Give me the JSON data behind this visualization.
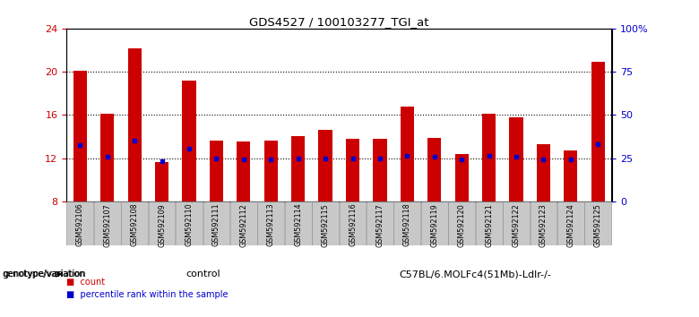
{
  "title": "GDS4527 / 100103277_TGI_at",
  "samples": [
    "GSM592106",
    "GSM592107",
    "GSM592108",
    "GSM592109",
    "GSM592110",
    "GSM592111",
    "GSM592112",
    "GSM592113",
    "GSM592114",
    "GSM592115",
    "GSM592116",
    "GSM592117",
    "GSM592118",
    "GSM592119",
    "GSM592120",
    "GSM592121",
    "GSM592122",
    "GSM592123",
    "GSM592124",
    "GSM592125"
  ],
  "counts": [
    20.1,
    16.1,
    22.2,
    11.6,
    19.2,
    13.6,
    13.5,
    13.6,
    14.0,
    14.6,
    13.8,
    13.8,
    16.8,
    13.9,
    12.4,
    16.1,
    15.8,
    13.3,
    12.7,
    20.9
  ],
  "percentile_ranks": [
    13.2,
    12.1,
    13.6,
    11.7,
    12.9,
    12.0,
    11.9,
    11.9,
    12.0,
    12.0,
    12.0,
    12.0,
    12.2,
    12.1,
    11.9,
    12.2,
    12.1,
    11.9,
    11.9,
    13.3
  ],
  "control_label": "control",
  "treatment_label": "C57BL/6.MOLFc4(51Mb)-Ldlr-/-",
  "ylim_left": [
    8,
    24
  ],
  "ylim_right": [
    0,
    100
  ],
  "yticks_left": [
    8,
    12,
    16,
    20,
    24
  ],
  "yticks_right": [
    0,
    25,
    50,
    75,
    100
  ],
  "ytick_labels_right": [
    "0",
    "25",
    "50",
    "75",
    "100%"
  ],
  "bar_color": "#cc0000",
  "marker_color": "#0000cc",
  "tick_color_left": "#cc0000",
  "tick_color_right": "#0000cc",
  "legend_count_label": "count",
  "legend_pct_label": "percentile rank within the sample",
  "genotype_label": "genotype/variation",
  "bar_width": 0.5,
  "sample_bg": "#c8c8c8",
  "control_bg": "#bbffbb",
  "treatment_bg": "#55dd55",
  "n_control": 10,
  "n_treatment": 10,
  "gridline_ticks": [
    12,
    16,
    20
  ]
}
